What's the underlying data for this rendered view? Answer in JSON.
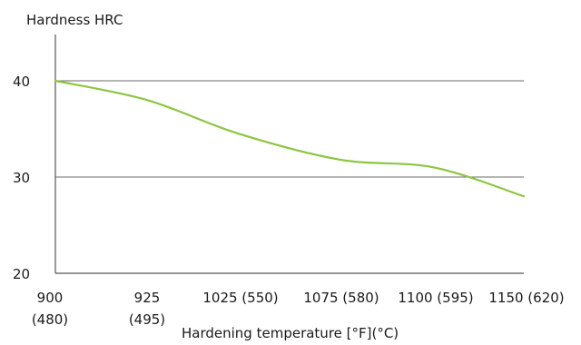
{
  "chart_data": {
    "type": "line",
    "ylabel": "Hardness HRC",
    "xlabel": "Hardening temperature [°F](°C)",
    "ylim": [
      20,
      45
    ],
    "yticks": [
      20,
      30,
      40
    ],
    "grid": true,
    "categories": [
      {
        "line1": "900",
        "line2": "(480)"
      },
      {
        "line1": "925",
        "line2": "(495)"
      },
      {
        "line1": "1025 (550)",
        "line2": ""
      },
      {
        "line1": "1075 (580)",
        "line2": ""
      },
      {
        "line1": "1100 (595)",
        "line2": ""
      },
      {
        "line1": "1150 (620)",
        "line2": ""
      }
    ],
    "series": [
      {
        "color": "#8cc63f",
        "values": [
          40,
          38,
          34.5,
          31.8,
          31,
          28
        ]
      }
    ]
  }
}
